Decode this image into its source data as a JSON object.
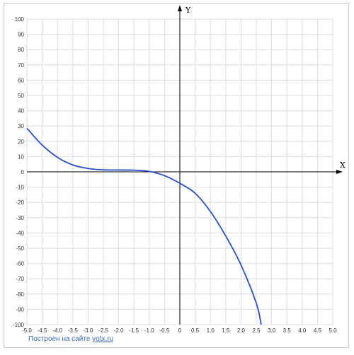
{
  "chart_data": {
    "type": "line",
    "title": "",
    "xlabel": "X",
    "ylabel": "Y",
    "xlim": [
      -5.0,
      5.0
    ],
    "ylim": [
      -100,
      100
    ],
    "grid": true,
    "x_ticks": [
      "-5.0",
      "-4.5",
      "-4.0",
      "-3.5",
      "-3.0",
      "-2.5",
      "-2.0",
      "-1.5",
      "-1.0",
      "-0.5",
      "0",
      "0.5",
      "1.0",
      "1.5",
      "2.0",
      "2.5",
      "3.0",
      "3.5",
      "4.0",
      "4.5",
      "5.0"
    ],
    "y_ticks": [
      "100",
      "90",
      "80",
      "70",
      "60",
      "50",
      "40",
      "30",
      "20",
      "10",
      "0",
      "-10",
      "-20",
      "-30",
      "-40",
      "-50",
      "-60",
      "-70",
      "-80",
      "-90",
      "-100"
    ],
    "series": [
      {
        "color": "#2a4ec8",
        "x": [
          -5.0,
          -4.5,
          -4.0,
          -3.5,
          -3.0,
          -2.5,
          -2.0,
          -1.5,
          -1.0,
          -0.5,
          0.0,
          0.5,
          1.0,
          1.5,
          2.0,
          2.5,
          2.66
        ],
        "values": [
          28.5,
          17.5,
          9.5,
          4.5,
          2.2,
          1.3,
          1.2,
          1.1,
          0.3,
          -2.5,
          -7.5,
          -14,
          -26,
          -42,
          -61,
          -86,
          -100
        ]
      }
    ]
  },
  "footer": {
    "prefix": "Построен на сайте ",
    "link": "yotx.ru"
  }
}
